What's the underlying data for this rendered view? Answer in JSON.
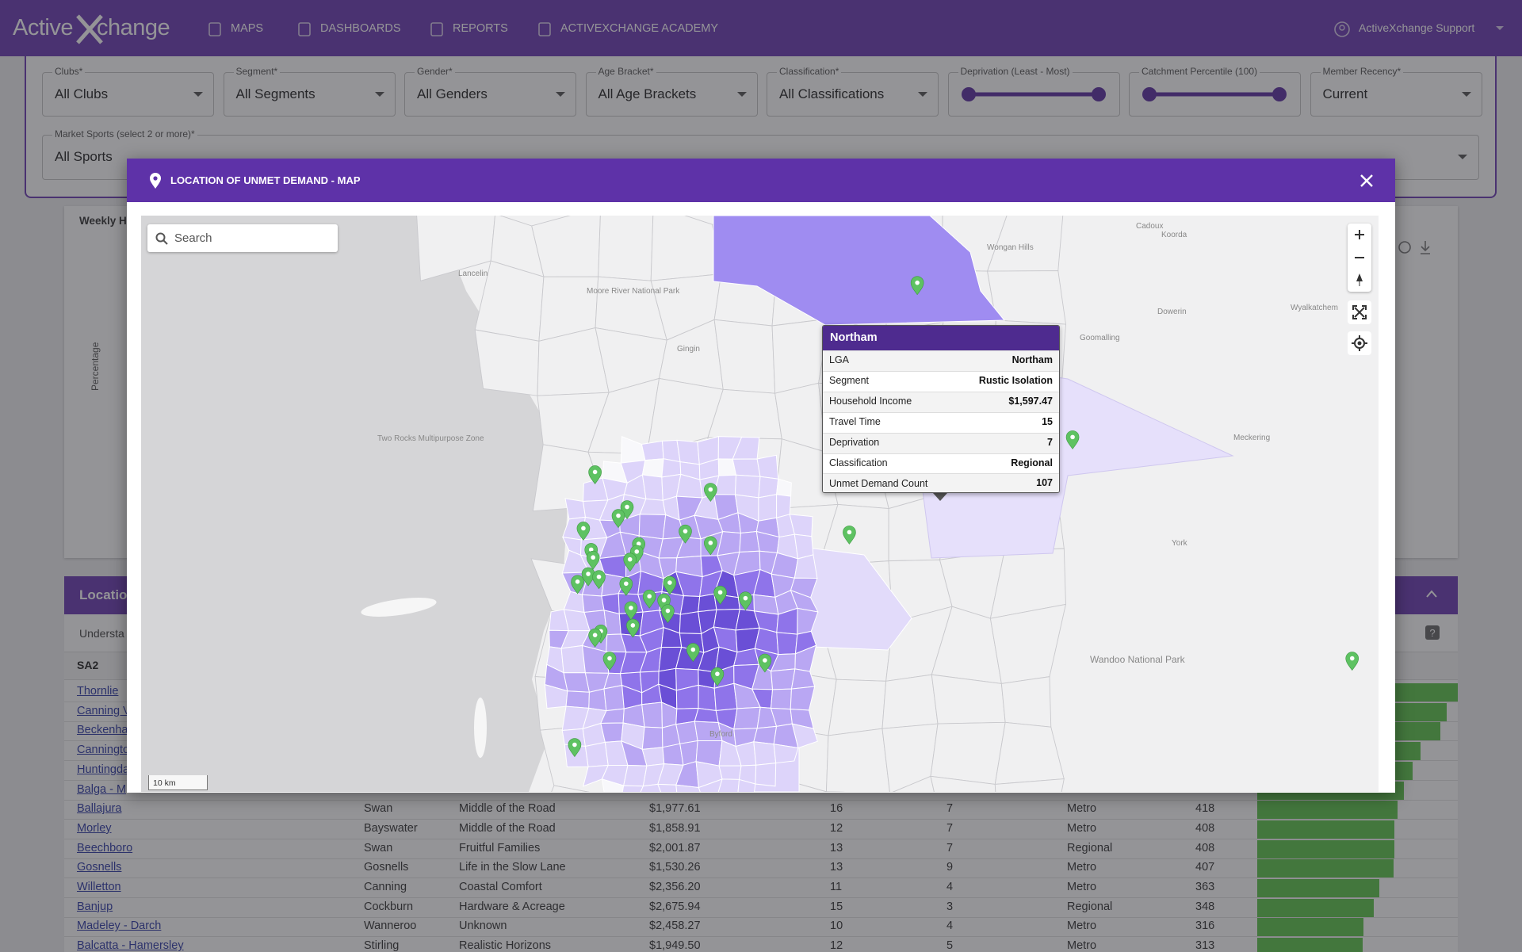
{
  "nav": {
    "logo": [
      "Active",
      "change"
    ],
    "items": [
      "MAPS",
      "DASHBOARDS",
      "REPORTS",
      "ACTIVEXCHANGE ACADEMY"
    ],
    "user": "ActiveXchange Support"
  },
  "filters": [
    {
      "label": "Clubs*",
      "value": "All Clubs"
    },
    {
      "label": "Segment*",
      "value": "All Segments"
    },
    {
      "label": "Gender*",
      "value": "All Genders"
    },
    {
      "label": "Age Bracket*",
      "value": "All Age Brackets"
    },
    {
      "label": "Classification*",
      "value": "All Classifications"
    },
    {
      "label": "Deprivation (Least - Most)"
    },
    {
      "label": "Catchment Percentile (100)"
    },
    {
      "label": "Member Recency*",
      "value": "Current"
    }
  ],
  "market_sports": {
    "label": "Market Sports (select 2 or more)*",
    "value": "All Sports"
  },
  "panel1": {
    "title": "Weekly H",
    "axis_label": "Percentage"
  },
  "panel2": {
    "title": "Locatio",
    "subtitle": "Understa"
  },
  "table": {
    "header": [
      "SA2"
    ],
    "rows": [
      [
        "Thornlie"
      ],
      [
        "Canning V"
      ],
      [
        "Beckenha"
      ],
      [
        "Canningto"
      ],
      [
        "Huntingda"
      ],
      [
        "Balga - M"
      ],
      [
        "Ballajura",
        "Swan",
        "Middle of the Road",
        "$1,977.61",
        16,
        7,
        "Metro",
        418
      ],
      [
        "Morley",
        "Bayswater",
        "Middle of the Road",
        "$1,858.91",
        12,
        7,
        "Metro",
        408
      ],
      [
        "Beechboro",
        "Swan",
        "Fruitful Families",
        "$2,001.87",
        13,
        7,
        "Regional",
        408
      ],
      [
        "Gosnells",
        "Gosnells",
        "Life in the Slow Lane",
        "$1,530.26",
        13,
        9,
        "Metro",
        407
      ],
      [
        "Willetton",
        "Canning",
        "Coastal Comfort",
        "$2,356.20",
        11,
        4,
        "Metro",
        363
      ],
      [
        "Banjup",
        "Cockburn",
        "Hardware & Acreage",
        "$2,675.94",
        15,
        3,
        "Regional",
        348
      ],
      [
        "Madeley - Darch",
        "Wanneroo",
        "Unknown",
        "$2,458.27",
        10,
        4,
        "Metro",
        316
      ],
      [
        "Balcatta - Hamersley",
        "Stirling",
        "Realistic Horizons",
        "$1,949.50",
        12,
        5,
        "Metro",
        313
      ]
    ]
  },
  "modal": {
    "title": "LOCATION OF UNMET DEMAND - MAP",
    "search_placeholder": "Search",
    "scale": "10 km",
    "places": [
      "Wandoo National Park",
      "York",
      "Meckering",
      "Moore River National Park",
      "Goomalling",
      "Dowerin",
      "Wyalkatchem",
      "Wongan Hills",
      "Koorda",
      "Cadoux",
      "Gingin",
      "Lancelin",
      "Two Rocks Multipurpose Zone",
      "Byford"
    ],
    "tooltip": {
      "title": "Northam",
      "rows": [
        [
          "LGA",
          "Northam"
        ],
        [
          "Segment",
          "Rustic Isolation"
        ],
        [
          "Household Income",
          "$1,597.47"
        ],
        [
          "Travel Time",
          15
        ],
        [
          "Deprivation",
          7
        ],
        [
          "Classification",
          "Regional"
        ],
        [
          "Unmet Demand Count",
          107
        ]
      ]
    }
  }
}
